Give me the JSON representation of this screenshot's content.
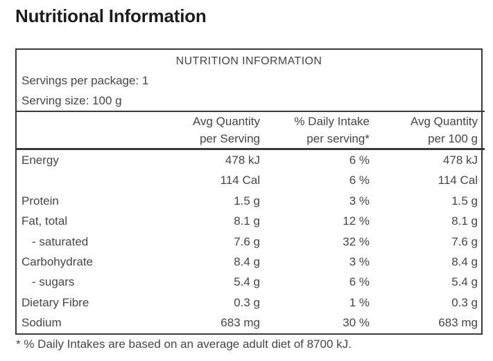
{
  "page": {
    "title": "Nutritional Information"
  },
  "table": {
    "header": "NUTRITION INFORMATION",
    "servings_line": "Servings per package: 1",
    "serving_size_line": "Serving size: 100 g",
    "columns": {
      "col2_line1": "Avg Quantity",
      "col2_line2": "per Serving",
      "col3_line1": "% Daily Intake",
      "col3_line2": "per serving*",
      "col4_line1": "Avg Quantity",
      "col4_line2": "per 100 g"
    },
    "rows": [
      {
        "label": "Energy",
        "per_serving": "478 kJ",
        "daily_intake": "6 %",
        "per_100g": "478 kJ"
      },
      {
        "label": "",
        "per_serving": "114 Cal",
        "daily_intake": "6 %",
        "per_100g": "114 Cal"
      },
      {
        "label": "Protein",
        "per_serving": "1.5 g",
        "daily_intake": "3 %",
        "per_100g": "1.5 g"
      },
      {
        "label": "Fat, total",
        "per_serving": "8.1 g",
        "daily_intake": "12 %",
        "per_100g": "8.1 g"
      },
      {
        "label": "- saturated",
        "per_serving": "7.6 g",
        "daily_intake": "32 %",
        "per_100g": "7.6 g"
      },
      {
        "label": "Carbohydrate",
        "per_serving": "8.4 g",
        "daily_intake": "3 %",
        "per_100g": "8.4 g"
      },
      {
        "label": "- sugars",
        "per_serving": "5.4 g",
        "daily_intake": "6 %",
        "per_100g": "5.4 g"
      },
      {
        "label": "Dietary Fibre",
        "per_serving": "0.3 g",
        "daily_intake": "1 %",
        "per_100g": "0.3 g"
      },
      {
        "label": "Sodium",
        "per_serving": "683 mg",
        "daily_intake": "30 %",
        "per_100g": "683 mg"
      }
    ],
    "footnote": "* % Daily Intakes are based on an average adult diet of 8700 kJ."
  },
  "colors": {
    "background": "#ffffff",
    "title_text": "#1d1d1d",
    "table_text": "#45454b",
    "border": "#383838"
  }
}
